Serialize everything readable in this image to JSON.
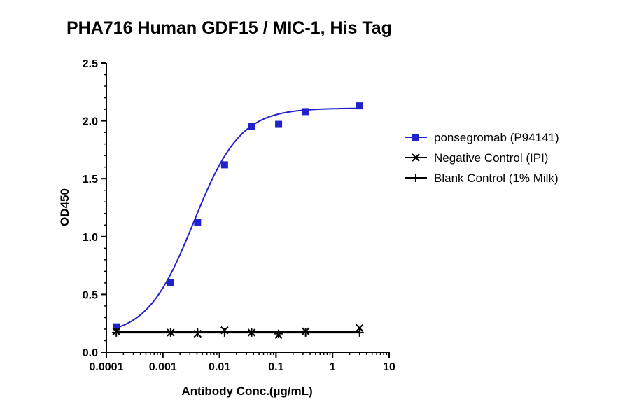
{
  "chart_data": {
    "type": "scatter",
    "title": "PHA716 Human GDF15 / MIC-1, His Tag",
    "xlabel": "Antibody Conc.(µg/mL)",
    "ylabel": "OD450",
    "x_scale": "log",
    "xlim": [
      0.0001,
      10
    ],
    "ylim": [
      0,
      2.5
    ],
    "x_ticks": [
      0.0001,
      0.001,
      0.01,
      0.1,
      1,
      10
    ],
    "x_tick_labels": [
      "0.0001",
      "0.001",
      "0.01",
      "0.1",
      "1",
      "10"
    ],
    "y_ticks": [
      0.0,
      0.5,
      1.0,
      1.5,
      2.0,
      2.5
    ],
    "y_tick_labels": [
      "0.0",
      "0.5",
      "1.0",
      "1.5",
      "2.0",
      "2.5"
    ],
    "grid": false,
    "legend_position": "right",
    "series": [
      {
        "name": "ponsegromab (P94141)",
        "color": "#2222cc",
        "marker": "square",
        "fit": "4PL",
        "x": [
          0.00015,
          0.00137,
          0.0041,
          0.0123,
          0.037,
          0.111,
          0.333,
          3.0
        ],
        "y": [
          0.22,
          0.6,
          1.12,
          1.62,
          1.95,
          1.97,
          2.08,
          2.13
        ]
      },
      {
        "name": "Negative Control (IPI)",
        "color": "#000000",
        "marker": "x",
        "x": [
          0.00015,
          0.00137,
          0.0041,
          0.0123,
          0.037,
          0.111,
          0.333,
          3.0
        ],
        "y": [
          0.18,
          0.17,
          0.16,
          0.19,
          0.17,
          0.15,
          0.18,
          0.21
        ]
      },
      {
        "name": "Blank Control (1% Milk)",
        "color": "#000000",
        "marker": "plus",
        "x": [
          0.00015,
          0.00137,
          0.0041,
          0.0123,
          0.037,
          0.111,
          0.333,
          3.0
        ],
        "y": [
          0.17,
          0.17,
          0.17,
          0.17,
          0.17,
          0.16,
          0.17,
          0.17
        ]
      }
    ]
  }
}
